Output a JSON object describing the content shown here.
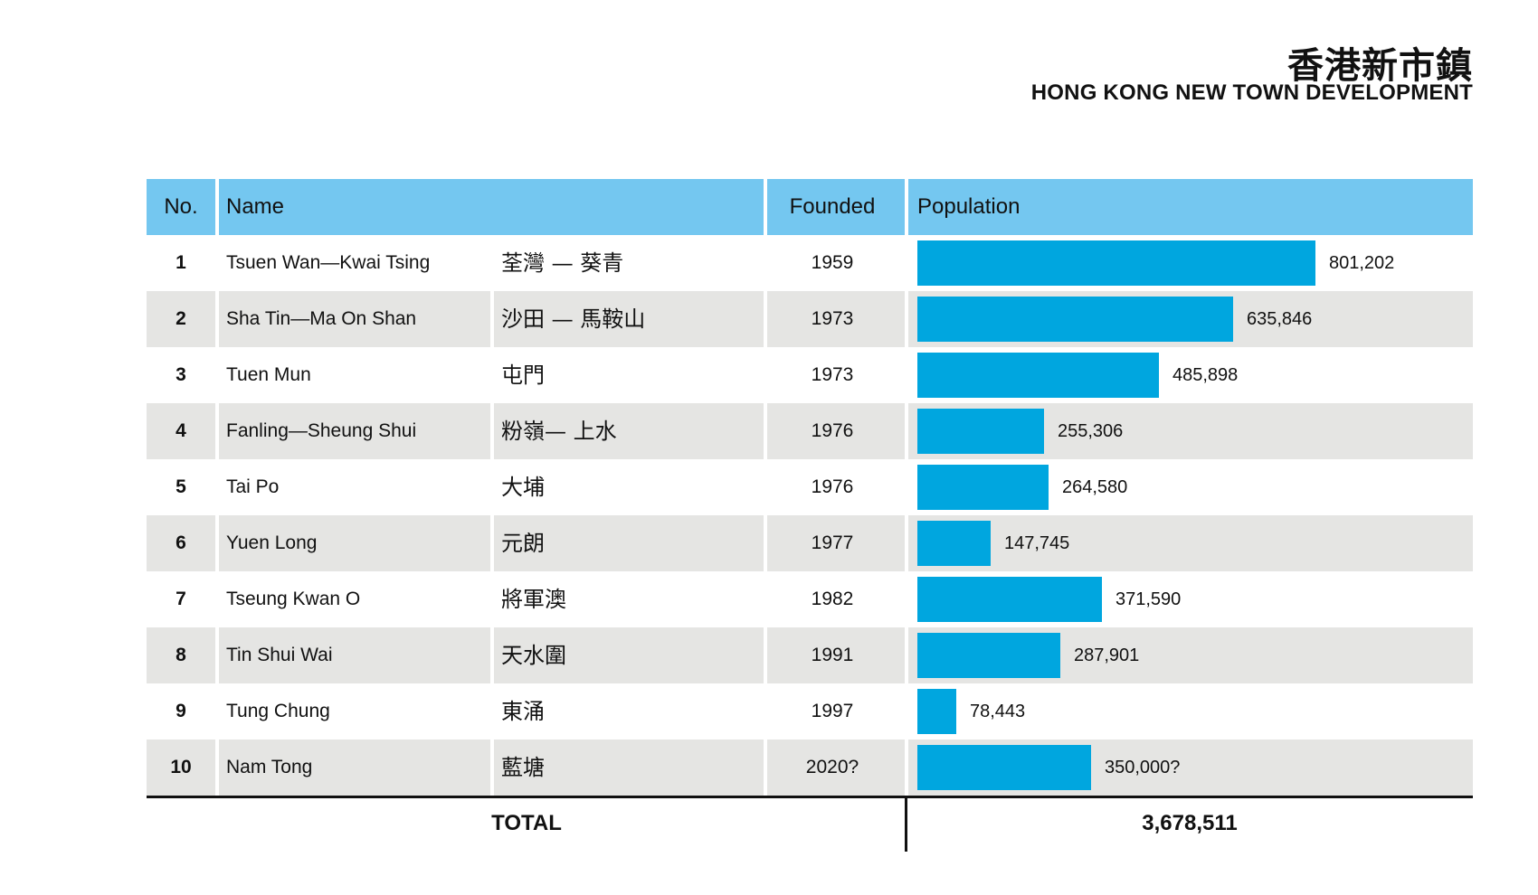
{
  "header": {
    "title_zh": "香港新市鎮",
    "title_en": "HONG KONG NEW TOWN DEVELOPMENT"
  },
  "table": {
    "columns": [
      "No.",
      "Name",
      "Founded",
      "Population"
    ],
    "total_label": "TOTAL",
    "total_value": "3,678,511"
  },
  "colors": {
    "header_bg": "#74c7f0",
    "bar": "#00a6df",
    "alt_row": "#e5e5e3"
  },
  "chart_data": {
    "type": "bar",
    "categories": [
      "Tsuen Wan—Kwai Tsing",
      "Sha Tin—Ma On Shan",
      "Tuen Mun",
      "Fanling—Sheung Shui",
      "Tai Po",
      "Yuen Long",
      "Tseung Kwan O",
      "Tin Shui Wai",
      "Tung Chung",
      "Nam Tong"
    ],
    "values": [
      801202,
      635846,
      485898,
      255306,
      264580,
      147745,
      371590,
      287901,
      78443,
      350000
    ],
    "rows": [
      {
        "no": "1",
        "name": "Tsuen Wan—Kwai Tsing",
        "name_zh": "荃灣 — 葵青",
        "founded": "1959",
        "population": 801202,
        "label": "801,202"
      },
      {
        "no": "2",
        "name": "Sha Tin—Ma On Shan",
        "name_zh": "沙田 — 馬鞍山",
        "founded": "1973",
        "population": 635846,
        "label": "635,846"
      },
      {
        "no": "3",
        "name": "Tuen Mun",
        "name_zh": "屯門",
        "founded": "1973",
        "population": 485898,
        "label": "485,898"
      },
      {
        "no": "4",
        "name": "Fanling—Sheung Shui",
        "name_zh": "粉嶺— 上水",
        "founded": "1976",
        "population": 255306,
        "label": "255,306"
      },
      {
        "no": "5",
        "name": "Tai Po",
        "name_zh": "大埔",
        "founded": "1976",
        "population": 264580,
        "label": "264,580"
      },
      {
        "no": "6",
        "name": "Yuen Long",
        "name_zh": "元朗",
        "founded": "1977",
        "population": 147745,
        "label": "147,745"
      },
      {
        "no": "7",
        "name": "Tseung Kwan O",
        "name_zh": "將軍澳",
        "founded": "1982",
        "population": 371590,
        "label": "371,590"
      },
      {
        "no": "8",
        "name": "Tin Shui Wai",
        "name_zh": "天水圍",
        "founded": "1991",
        "population": 287901,
        "label": "287,901"
      },
      {
        "no": "9",
        "name": "Tung Chung",
        "name_zh": "東涌",
        "founded": "1997",
        "population": 78443,
        "label": "78,443"
      },
      {
        "no": "10",
        "name": "Nam Tong",
        "name_zh": "藍塘",
        "founded": "2020?",
        "population": 350000,
        "label": "350,000?"
      }
    ]
  }
}
